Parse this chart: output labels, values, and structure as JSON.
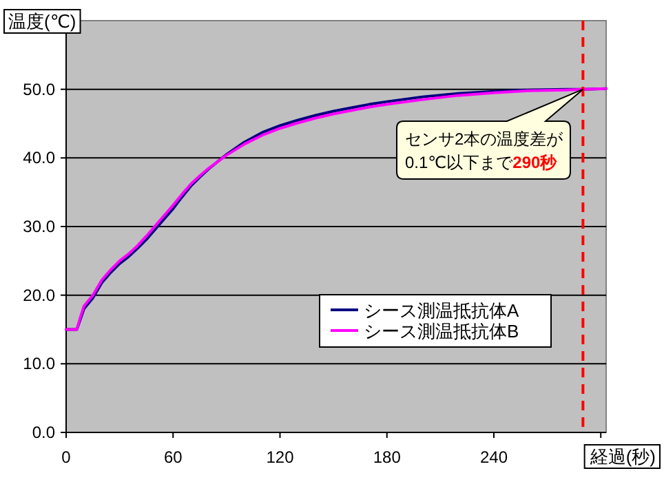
{
  "chart_data": {
    "type": "line",
    "xlabel": "経過(秒)",
    "ylabel": "温度(℃)",
    "xlim": [
      0,
      303
    ],
    "ylim": [
      0,
      60
    ],
    "xticks": [
      0,
      60,
      120,
      180,
      240,
      {
        "value": 300,
        "label": null
      }
    ],
    "yticks": [
      {
        "value": 0,
        "label": "0.0"
      },
      {
        "value": 10,
        "label": "10.0"
      },
      {
        "value": 20,
        "label": "20.0"
      },
      {
        "value": 30,
        "label": "30.0"
      },
      {
        "value": 40,
        "label": "40.0"
      },
      {
        "value": 50,
        "label": "50.0"
      }
    ],
    "grid": "y",
    "legend": "bottom right",
    "marker": "none",
    "line_style": "solid",
    "x": [
      0,
      6,
      8,
      10,
      15,
      20,
      25,
      30,
      35,
      40,
      45,
      50,
      55,
      60,
      65,
      70,
      75,
      80,
      90,
      100,
      110,
      120,
      130,
      140,
      150,
      160,
      170,
      180,
      200,
      220,
      240,
      260,
      280,
      290,
      303
    ],
    "series": [
      {
        "name": "シース測温抵抗体A",
        "color": "#000080",
        "values": [
          15,
          15,
          16.5,
          18,
          19.6,
          21.8,
          23.3,
          24.6,
          25.6,
          26.8,
          28.1,
          29.6,
          31.1,
          32.6,
          34.3,
          35.9,
          37.2,
          38.4,
          40.5,
          42.3,
          43.7,
          44.7,
          45.5,
          46.2,
          46.8,
          47.3,
          47.8,
          48.2,
          48.9,
          49.4,
          49.7,
          49.9,
          50,
          50,
          50.1
        ]
      },
      {
        "name": "シース測温抵抗体B",
        "color": "#ff00ff",
        "values": [
          15,
          15,
          16.8,
          18.4,
          20,
          22.2,
          23.7,
          25,
          26,
          27.2,
          28.6,
          30.1,
          31.6,
          33.1,
          34.7,
          36.2,
          37.4,
          38.5,
          40.4,
          42,
          43.3,
          44.3,
          45.1,
          45.8,
          46.4,
          46.9,
          47.4,
          47.8,
          48.5,
          49.1,
          49.5,
          49.8,
          49.9,
          50,
          50.1
        ]
      }
    ],
    "ref_lines": [
      {
        "axis": "x",
        "value": 290,
        "color": "#ff0000",
        "line_style": "dashed"
      }
    ],
    "annotations": [
      {
        "text": "センサ2本の温度差が0.1℃以下まで290秒",
        "x": 290,
        "y": 50
      }
    ]
  }
}
